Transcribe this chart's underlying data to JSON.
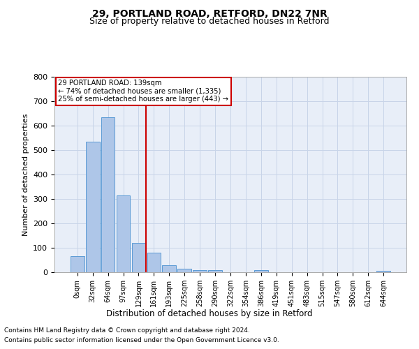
{
  "title1": "29, PORTLAND ROAD, RETFORD, DN22 7NR",
  "title2": "Size of property relative to detached houses in Retford",
  "xlabel": "Distribution of detached houses by size in Retford",
  "ylabel": "Number of detached properties",
  "footnote1": "Contains HM Land Registry data © Crown copyright and database right 2024.",
  "footnote2": "Contains public sector information licensed under the Open Government Licence v3.0.",
  "annotation_line1": "29 PORTLAND ROAD: 139sqm",
  "annotation_line2": "← 74% of detached houses are smaller (1,335)",
  "annotation_line3": "25% of semi-detached houses are larger (443) →",
  "bar_labels": [
    "0sqm",
    "32sqm",
    "64sqm",
    "97sqm",
    "129sqm",
    "161sqm",
    "193sqm",
    "225sqm",
    "258sqm",
    "290sqm",
    "322sqm",
    "354sqm",
    "386sqm",
    "419sqm",
    "451sqm",
    "483sqm",
    "515sqm",
    "547sqm",
    "580sqm",
    "612sqm",
    "644sqm"
  ],
  "bar_heights": [
    65,
    535,
    635,
    315,
    120,
    80,
    30,
    15,
    10,
    10,
    0,
    0,
    8,
    0,
    0,
    0,
    0,
    0,
    0,
    0,
    5
  ],
  "bar_color": "#aec6e8",
  "bar_edgecolor": "#5b9bd5",
  "vline_x": 4.5,
  "vline_color": "#cc0000",
  "ylim": [
    0,
    800
  ],
  "yticks": [
    0,
    100,
    200,
    300,
    400,
    500,
    600,
    700,
    800
  ],
  "grid_color": "#c8d4e8",
  "bg_color": "#e8eef8",
  "annotation_box_color": "#cc0000",
  "title1_fontsize": 10,
  "title2_fontsize": 9
}
